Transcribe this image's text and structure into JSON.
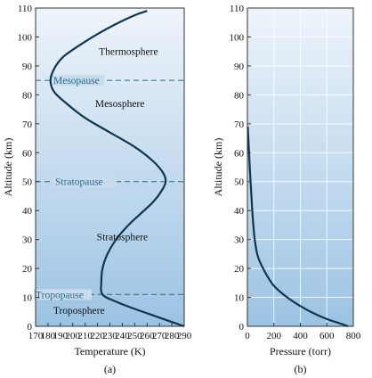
{
  "chart_data": [
    {
      "type": "line",
      "panel_label": "(a)",
      "xlabel": "Temperature (K)",
      "ylabel": "Altitude (km)",
      "xlim": [
        170,
        290
      ],
      "ylim": [
        0,
        110
      ],
      "xticks": [
        170,
        180,
        190,
        200,
        210,
        220,
        230,
        240,
        250,
        260,
        270,
        280,
        290
      ],
      "yticks": [
        0,
        10,
        20,
        30,
        40,
        50,
        60,
        70,
        80,
        90,
        100,
        110
      ],
      "grid": false,
      "series": [
        {
          "x": [
            290,
            270,
            250,
            235,
            224,
            223,
            224,
            228,
            235,
            245,
            255,
            265,
            272,
            275,
            273,
            265,
            250,
            230,
            210,
            195,
            185,
            182,
            185,
            192,
            205,
            220,
            235,
            250,
            260
          ],
          "y": [
            0,
            3,
            6,
            8.5,
            11,
            15,
            20,
            25,
            30,
            35,
            39,
            43,
            47,
            50,
            53,
            57,
            62,
            67,
            72,
            77,
            81,
            85,
            89,
            93,
            97,
            101,
            104.5,
            107.5,
            109
          ]
        }
      ],
      "annotations": [
        {
          "label": "Thermosphere",
          "x": 245,
          "y": 95
        },
        {
          "label": "Mesosphere",
          "x": 238,
          "y": 77
        },
        {
          "label": "Stratosphere",
          "x": 240,
          "y": 31
        },
        {
          "label": "Troposphere",
          "x": 205,
          "y": 5.5
        }
      ],
      "boundaries": [
        {
          "label": "Mesopause",
          "y": 85
        },
        {
          "label": "Stratopause",
          "y": 50
        },
        {
          "label": "Tropopause",
          "y": 11
        }
      ]
    },
    {
      "type": "line",
      "panel_label": "(b)",
      "xlabel": "Pressure (torr)",
      "ylabel": "Altitude (km)",
      "xlim": [
        0,
        800
      ],
      "ylim": [
        0,
        110
      ],
      "xticks": [
        0,
        200,
        400,
        600,
        800
      ],
      "yticks": [
        0,
        10,
        20,
        30,
        40,
        50,
        60,
        70,
        80,
        90,
        100,
        110
      ],
      "grid": true,
      "series": [
        {
          "x": [
            760,
            700,
            600,
            500,
            400,
            300,
            200,
            130,
            80,
            55,
            40,
            30,
            20,
            10,
            3
          ],
          "y": [
            0,
            1,
            2.5,
            4.5,
            7,
            10,
            14,
            19,
            24,
            30,
            38,
            45,
            53,
            62,
            69
          ]
        }
      ]
    }
  ]
}
